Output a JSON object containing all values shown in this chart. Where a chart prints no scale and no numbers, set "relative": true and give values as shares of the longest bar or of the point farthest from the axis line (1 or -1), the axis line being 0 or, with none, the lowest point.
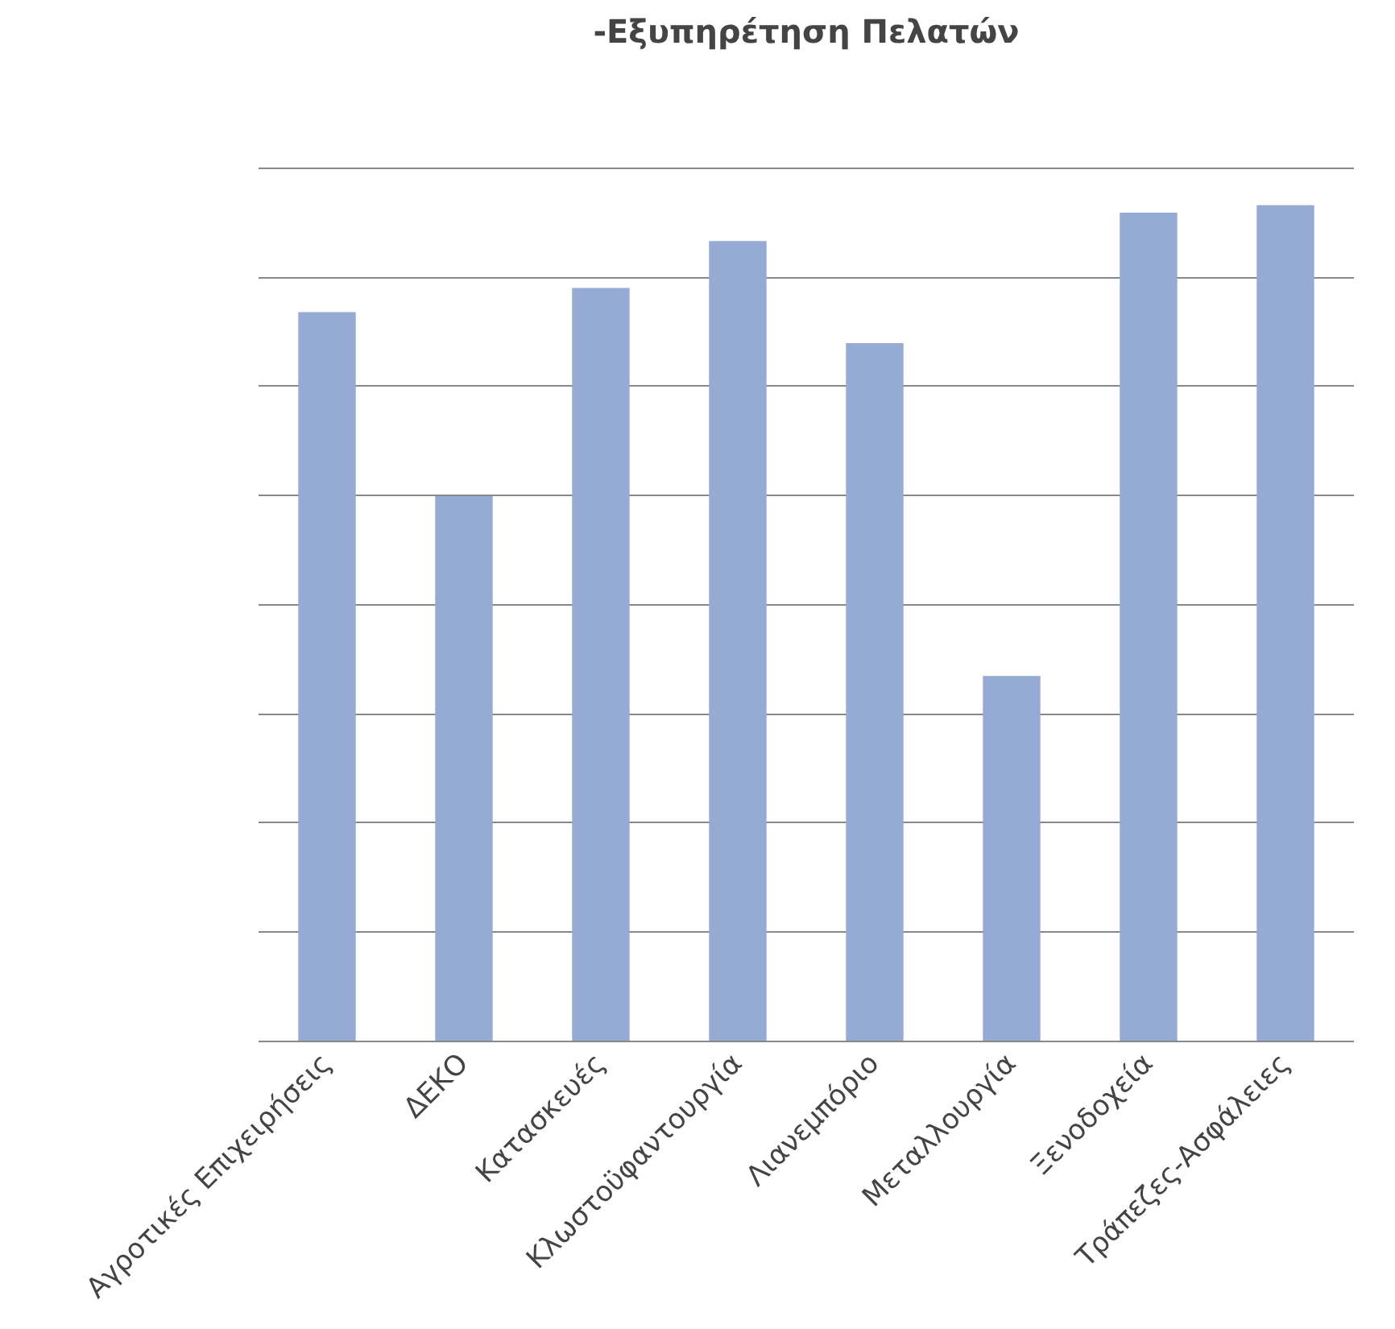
{
  "chart_data": {
    "type": "bar",
    "title": "-Εξυπηρέτηση Πελατών",
    "categories": [
      "Αγροτικές Επιχειρήσεις",
      "ΔΕΚΟ",
      "Κατασκευές",
      "Κλωστοϋφαντουργία",
      "Λιανεμπόριο",
      "Μεταλλουργία",
      "Ξενοδοχεία",
      "Τράπεζες-Ασφάλειες"
    ],
    "values": [
      0.872,
      0.652,
      0.901,
      0.957,
      0.835,
      0.437,
      0.991,
      1
    ],
    "color": "#95abd3",
    "relative": true,
    "grid": "y"
  }
}
